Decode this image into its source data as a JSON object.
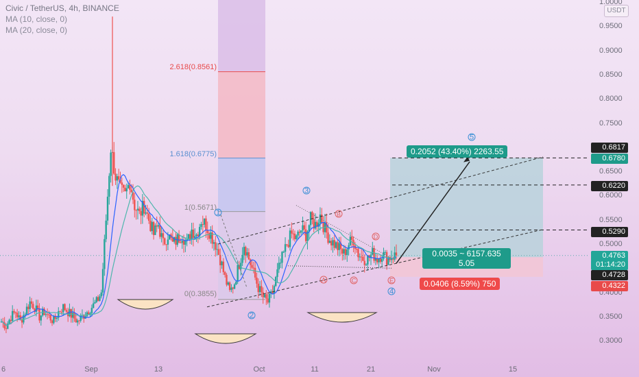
{
  "legend": {
    "title": "Civic / TetherUS, 4h, BINANCE",
    "ma10": "MA (10, close, 0)",
    "ma20": "MA (20, close, 0)"
  },
  "price_axis": {
    "unit_badge": "USDT",
    "ticks": [
      "1.0000",
      "0.9500",
      "0.9000",
      "0.8500",
      "0.8000",
      "0.7500",
      "0.7000",
      "0.6500",
      "0.6000",
      "0.5500",
      "0.5000",
      "0.4500",
      "0.4000",
      "0.3500",
      "0.3000"
    ],
    "tags": [
      {
        "text": "0.6817",
        "color": "#222222"
      },
      {
        "text": "0.6780",
        "color": "#1e9b8a"
      },
      {
        "text": "0.6220",
        "color": "#222222"
      },
      {
        "text": "0.5290",
        "color": "#222222"
      },
      {
        "text": "0.4763",
        "color": "#22a698"
      },
      {
        "text": "01:14:20",
        "color": "#22a698"
      },
      {
        "text": "0.4728",
        "color": "#222222"
      },
      {
        "text": "0.4322",
        "color": "#e84a4a"
      }
    ]
  },
  "time_axis": {
    "ticks": [
      "6",
      "Sep",
      "13",
      "Oct",
      "11",
      "21",
      "Nov",
      "15"
    ]
  },
  "fib_labels": {
    "l2618": "2.618(0.8561)",
    "l1618": "1.618(0.6775)",
    "l1": "1(0.5671)",
    "l0": "0(0.3855)"
  },
  "position": {
    "target_text": "0.2052 (43.40%) 2263.55",
    "entry_text_1": "0.0035 ~ 6157.635",
    "entry_text_2": "5.05",
    "stop_text": "0.0406 (8.59%) 750"
  },
  "waves": {
    "impulse": [
      "1",
      "2",
      "3",
      "4",
      "5"
    ],
    "corrective": [
      "A",
      "B",
      "C",
      "D",
      "E"
    ]
  },
  "colors": {
    "bull": "#26a69a",
    "bear": "#ef5350",
    "ma10": "#2962ff",
    "ma20": "#4db6ac",
    "target_fill": "#b9d2dc",
    "stop_fill": "#f2c7d6"
  },
  "chart_data": {
    "type": "candlestick",
    "title": "Civic / TetherUS, 4h, BINANCE",
    "ylim": [
      0.27,
      1.0
    ],
    "y_scale": "linear",
    "x_ticks": [
      "6",
      "Sep",
      "13",
      "Oct",
      "11",
      "21",
      "Nov",
      "15"
    ],
    "series": [
      {
        "name": "MA (10, close, 0)"
      },
      {
        "name": "MA (20, close, 0)"
      }
    ],
    "close_path": [
      0.34,
      0.33,
      0.35,
      0.36,
      0.34,
      0.36,
      0.38,
      0.37,
      0.35,
      0.36,
      0.35,
      0.34,
      0.36,
      0.37,
      0.36,
      0.35,
      0.34,
      0.35,
      0.36,
      0.37,
      0.38,
      0.4,
      0.55,
      0.7,
      0.64,
      0.61,
      0.6,
      0.63,
      0.58,
      0.56,
      0.58,
      0.55,
      0.52,
      0.54,
      0.5,
      0.52,
      0.5,
      0.51,
      0.52,
      0.5,
      0.53,
      0.52,
      0.55,
      0.54,
      0.52,
      0.5,
      0.47,
      0.43,
      0.4,
      0.42,
      0.46,
      0.5,
      0.47,
      0.44,
      0.41,
      0.39,
      0.38,
      0.4,
      0.44,
      0.47,
      0.5,
      0.52,
      0.51,
      0.53,
      0.52,
      0.55,
      0.54,
      0.56,
      0.53,
      0.51,
      0.5,
      0.49,
      0.48,
      0.5,
      0.51,
      0.48,
      0.47,
      0.47,
      0.48,
      0.47,
      0.48,
      0.47,
      0.475,
      0.4763
    ],
    "price_levels": [
      0.6817,
      0.678,
      0.622,
      0.529,
      0.4763,
      0.4728,
      0.4322
    ],
    "fibonacci": [
      {
        "ratio": "2.618",
        "price": 0.8561
      },
      {
        "ratio": "1.618",
        "price": 0.6775
      },
      {
        "ratio": "1",
        "price": 0.5671
      },
      {
        "ratio": "0",
        "price": 0.3855
      }
    ],
    "long_position": {
      "entry": 0.4728,
      "target": 0.678,
      "stop": 0.4322
    }
  }
}
